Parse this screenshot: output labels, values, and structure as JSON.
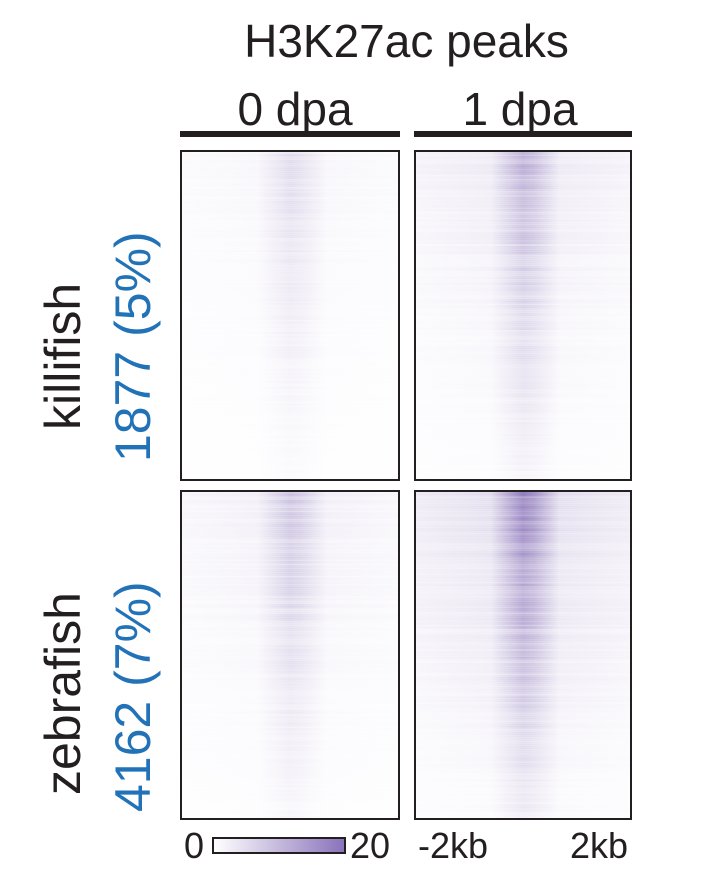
{
  "chart_data": {
    "type": "heatmap",
    "title": "H3K27ac peaks",
    "columns": [
      {
        "label": "0 dpa",
        "peak_intensity": 0.38
      },
      {
        "label": "1 dpa",
        "peak_intensity": 0.85
      }
    ],
    "rows": [
      {
        "species": "killifish",
        "count_label": "1877 (5%)",
        "top_fraction_signal": 0.6
      },
      {
        "species": "zebrafish",
        "count_label": "4162 (7%)",
        "top_fraction_signal": 1.0
      }
    ],
    "colorbar": {
      "min_label": "0",
      "max_label": "20",
      "min": 0,
      "max": 20,
      "color_low": "#ffffff",
      "color_high": "#8a73bb"
    },
    "x_axis": {
      "left_label": "-2kb",
      "right_label": "2kb"
    },
    "colors": {
      "heat": "#7b62b0",
      "count_text": "#2272b8",
      "text": "#231f20"
    }
  }
}
